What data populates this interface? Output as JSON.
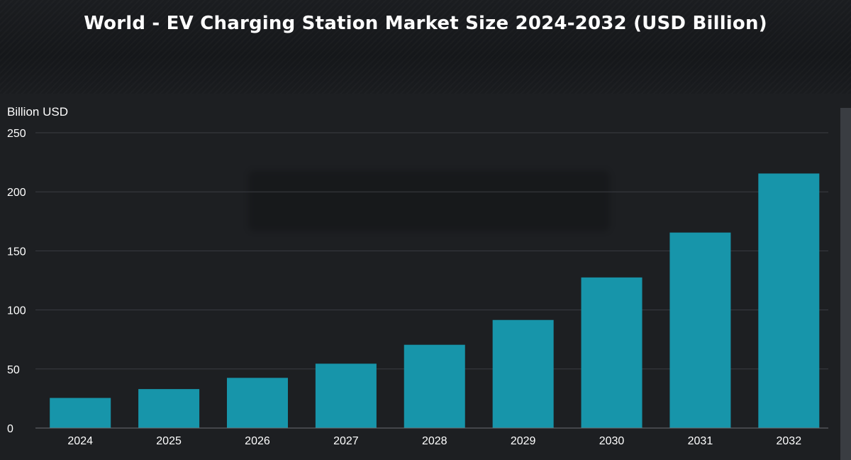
{
  "chart_data": {
    "type": "bar",
    "title": "World - EV Charging Station Market Size 2024-2032 (USD Billion)",
    "ylabel": "Billion USD",
    "xlabel": "",
    "categories": [
      "2024",
      "2025",
      "2026",
      "2027",
      "2028",
      "2029",
      "2030",
      "2031",
      "2032"
    ],
    "values": [
      25.5,
      33,
      42.5,
      54.5,
      70.5,
      91.5,
      127.5,
      165.5,
      215.5
    ],
    "ylim": [
      0,
      250
    ],
    "yticks": [
      "0",
      "50",
      "100",
      "150",
      "200",
      "250"
    ],
    "grid": true,
    "legend": "none",
    "colors": {
      "bar": "#1795aa",
      "grid": "#3a3d42",
      "axis_text": "#ffffff",
      "background": "#1d1f22"
    }
  }
}
